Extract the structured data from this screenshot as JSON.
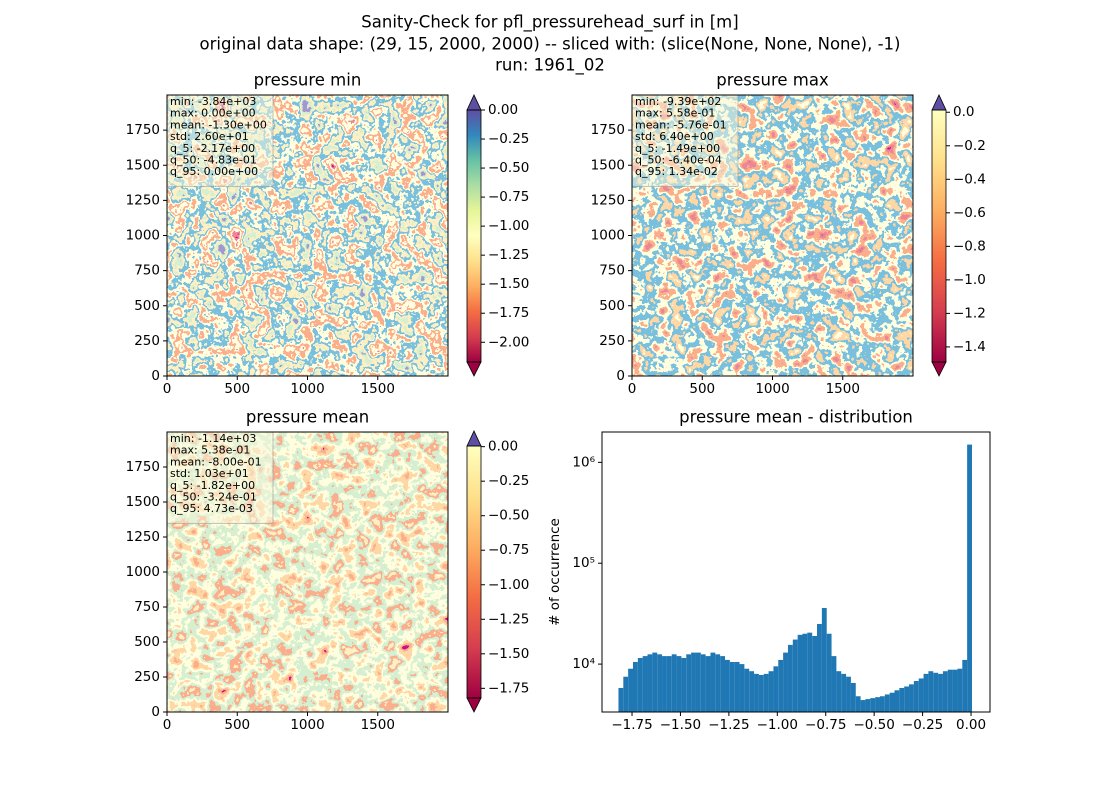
{
  "suptitle": [
    "Sanity-Check for pfl_pressurehead_surf in [m]",
    "original data shape: (29, 15, 2000, 2000) -- sliced with: (slice(None, None, None), -1)",
    "run: 1961_02"
  ],
  "chart_data": [
    {
      "type": "image",
      "title": "pressure min",
      "xlim": [
        0,
        2000
      ],
      "ylim": [
        0,
        2000
      ],
      "xticks": [
        0,
        500,
        1000,
        1500
      ],
      "yticks": [
        0,
        250,
        500,
        750,
        1000,
        1250,
        1500,
        1750
      ],
      "stats": [
        "min: -3.84e+03",
        "max: 0.00e+00",
        "mean: -1.30e+00",
        "std: 2.60e+01",
        "q_5: -2.17e+00",
        "q_50: -4.83e-01",
        "q_95: 0.00e+00"
      ],
      "colorbar": {
        "clim": [
          -2.17,
          0
        ],
        "extend": "both",
        "ticks": [
          {
            "value": 0,
            "label": "0.00"
          },
          {
            "value": -0.25,
            "label": "−0.25"
          },
          {
            "value": -0.5,
            "label": "−0.50"
          },
          {
            "value": -0.75,
            "label": "−0.75"
          },
          {
            "value": -1,
            "label": "−1.00"
          },
          {
            "value": -1.25,
            "label": "−1.25"
          },
          {
            "value": -1.5,
            "label": "−1.50"
          },
          {
            "value": -1.75,
            "label": "−1.75"
          },
          {
            "value": -2,
            "label": "−2.00"
          }
        ]
      }
    },
    {
      "type": "image",
      "title": "pressure max",
      "xlim": [
        0,
        2000
      ],
      "ylim": [
        0,
        2000
      ],
      "xticks": [
        0,
        500,
        1000,
        1500
      ],
      "yticks": [
        0,
        250,
        500,
        750,
        1000,
        1250,
        1500,
        1750
      ],
      "stats": [
        "min: -9.39e+02",
        "max: 5.58e-01",
        "mean: -5.76e-01",
        "std: 6.40e+00",
        "q_5: -1.49e+00",
        "q_50: -6.40e-04",
        "q_95: 1.34e-02"
      ],
      "colorbar": {
        "clim": [
          -1.49,
          0.0134
        ],
        "extend": "both",
        "ticks": [
          {
            "value": 0,
            "label": "0.0"
          },
          {
            "value": -0.2,
            "label": "−0.2"
          },
          {
            "value": -0.4,
            "label": "−0.4"
          },
          {
            "value": -0.6,
            "label": "−0.6"
          },
          {
            "value": -0.8,
            "label": "−0.8"
          },
          {
            "value": -1,
            "label": "−1.0"
          },
          {
            "value": -1.2,
            "label": "−1.2"
          },
          {
            "value": -1.4,
            "label": "−1.4"
          }
        ]
      }
    },
    {
      "type": "image",
      "title": "pressure mean",
      "xlim": [
        0,
        2000
      ],
      "ylim": [
        0,
        2000
      ],
      "xticks": [
        0,
        500,
        1000,
        1500
      ],
      "yticks": [
        0,
        250,
        500,
        750,
        1000,
        1250,
        1500,
        1750
      ],
      "stats": [
        "min: -1.14e+03",
        "max: 5.38e-01",
        "mean: -8.00e-01",
        "std: 1.03e+01",
        "q_5: -1.82e+00",
        "q_50: -3.24e-01",
        "q_95: 4.73e-03"
      ],
      "colorbar": {
        "clim": [
          -1.82,
          0.00473
        ],
        "extend": "both",
        "ticks": [
          {
            "value": 0,
            "label": "0.00"
          },
          {
            "value": -0.25,
            "label": "−0.25"
          },
          {
            "value": -0.5,
            "label": "−0.50"
          },
          {
            "value": -0.75,
            "label": "−0.75"
          },
          {
            "value": -1,
            "label": "−1.00"
          },
          {
            "value": -1.25,
            "label": "−1.25"
          },
          {
            "value": -1.5,
            "label": "−1.50"
          },
          {
            "value": -1.75,
            "label": "−1.75"
          }
        ]
      }
    },
    {
      "type": "histogram",
      "title": "pressure mean - distribution",
      "ylabel": "# of occurrence",
      "color": "#1f77b4",
      "log_y": true,
      "bins": [
        -1.82,
        -1.795,
        -1.77,
        -1.745,
        -1.72,
        -1.695,
        -1.67,
        -1.645,
        -1.62,
        -1.595,
        -1.57,
        -1.545,
        -1.52,
        -1.495,
        -1.47,
        -1.445,
        -1.42,
        -1.395,
        -1.37,
        -1.345,
        -1.32,
        -1.295,
        -1.27,
        -1.245,
        -1.22,
        -1.195,
        -1.17,
        -1.145,
        -1.12,
        -1.095,
        -1.07,
        -1.045,
        -1.02,
        -0.995,
        -0.97,
        -0.945,
        -0.92,
        -0.895,
        -0.87,
        -0.845,
        -0.82,
        -0.795,
        -0.77,
        -0.745,
        -0.72,
        -0.695,
        -0.67,
        -0.645,
        -0.62,
        -0.595,
        -0.57,
        -0.545,
        -0.52,
        -0.495,
        -0.47,
        -0.445,
        -0.42,
        -0.395,
        -0.37,
        -0.345,
        -0.32,
        -0.295,
        -0.27,
        -0.245,
        -0.22,
        -0.195,
        -0.17,
        -0.145,
        -0.12,
        -0.095,
        -0.07,
        -0.045,
        -0.02,
        0.005
      ],
      "counts": [
        5800,
        7500,
        9000,
        10500,
        11500,
        12000,
        12500,
        13000,
        12500,
        12000,
        12000,
        12500,
        12000,
        11500,
        12500,
        13000,
        13000,
        12500,
        12000,
        13000,
        12500,
        12000,
        11000,
        10500,
        10500,
        10000,
        9000,
        8500,
        8000,
        7800,
        8000,
        8500,
        9500,
        11000,
        13000,
        15500,
        17500,
        19500,
        20000,
        20500,
        19000,
        25000,
        36000,
        20000,
        12000,
        8500,
        8000,
        7500,
        6500,
        4800,
        4400,
        4500,
        4600,
        4700,
        4800,
        5000,
        5200,
        5500,
        5800,
        6000,
        6300,
        6800,
        7200,
        8000,
        8500,
        8200,
        8000,
        8500,
        8800,
        8800,
        9000,
        11000,
        1500000
      ],
      "xlim": [
        -1.905,
        0.098
      ],
      "ylim": [
        3350,
        2000000
      ],
      "xticks": [
        {
          "value": -1.75,
          "label": "−1.75"
        },
        {
          "value": -1.5,
          "label": "−1.50"
        },
        {
          "value": -1.25,
          "label": "−1.25"
        },
        {
          "value": -1,
          "label": "−1.00"
        },
        {
          "value": -0.75,
          "label": "−0.75"
        },
        {
          "value": -0.5,
          "label": "−0.50"
        },
        {
          "value": -0.25,
          "label": "−0.25"
        },
        {
          "value": 0,
          "label": "0.00"
        }
      ],
      "yticks": [
        {
          "value": 10000,
          "label": "10⁴"
        },
        {
          "value": 100000,
          "label": "10⁵"
        },
        {
          "value": 1000000,
          "label": "10⁶"
        }
      ]
    }
  ]
}
